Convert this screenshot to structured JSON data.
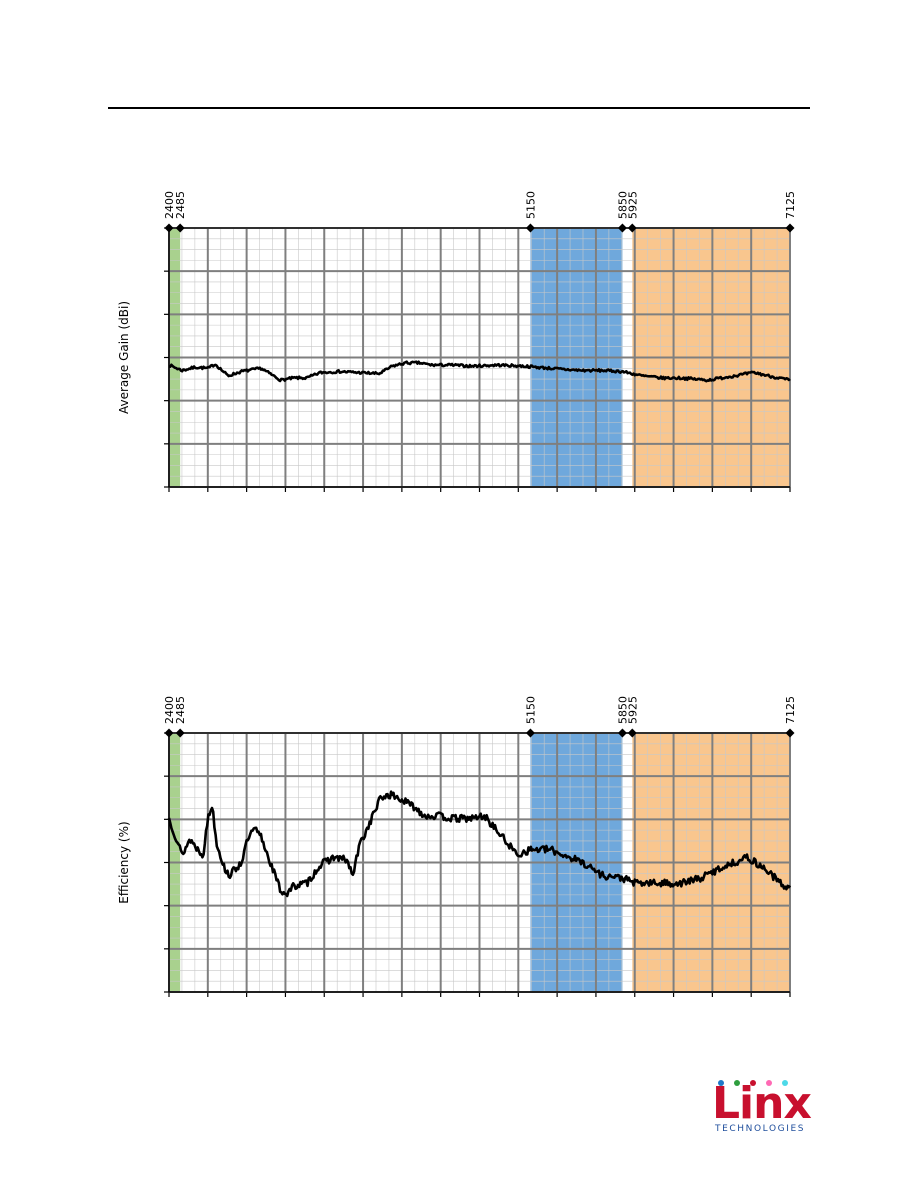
{
  "chart_data": [
    {
      "type": "line",
      "ylabel": "Average Gain (dBi)",
      "x_range": [
        2400,
        7125
      ],
      "frequency_markers": [
        "2400",
        "2485",
        "5150",
        "5850",
        "5925",
        "7125"
      ],
      "bands": [
        {
          "from": 2400,
          "to": 2485,
          "color": "#a9d18e"
        },
        {
          "from": 5150,
          "to": 5850,
          "color": "#6fa8dc"
        },
        {
          "from": 5925,
          "to": 7125,
          "color": "#f9c68e"
        }
      ],
      "grid": true,
      "series": [
        {
          "x": [
            2400,
            2500,
            2600,
            2700,
            2750,
            2850,
            2950,
            3100,
            3250,
            3350,
            3450,
            3550,
            3700,
            3850,
            4000,
            4100,
            4200,
            4300,
            4400,
            4550,
            4700,
            4900,
            5100,
            5200,
            5400,
            5550,
            5700,
            5850,
            6000,
            6150,
            6300,
            6500,
            6700,
            6850,
            7000,
            7125
          ],
          "y": [
            3.65,
            3.4,
            3.55,
            3.5,
            3.7,
            3.15,
            3.35,
            3.5,
            2.95,
            3.05,
            3.05,
            3.3,
            3.35,
            3.3,
            3.25,
            3.6,
            3.75,
            3.75,
            3.65,
            3.65,
            3.6,
            3.65,
            3.6,
            3.55,
            3.45,
            3.4,
            3.4,
            3.35,
            3.15,
            3.05,
            3.05,
            2.95,
            3.15,
            3.3,
            3.1,
            2.95
          ]
        }
      ]
    },
    {
      "type": "line",
      "ylabel": "Efficiency (%)",
      "x_range": [
        2400,
        7125
      ],
      "frequency_markers": [
        "2400",
        "2485",
        "5150",
        "5850",
        "5925",
        "7125"
      ],
      "bands": [
        {
          "from": 2400,
          "to": 2485,
          "color": "#a9d18e"
        },
        {
          "from": 5150,
          "to": 5850,
          "color": "#6fa8dc"
        },
        {
          "from": 5925,
          "to": 7125,
          "color": "#f9c68e"
        }
      ],
      "grid": true,
      "series": [
        {
          "x": [
            2400,
            2500,
            2560,
            2620,
            2660,
            2700,
            2730,
            2760,
            2820,
            2860,
            2950,
            3000,
            3050,
            3100,
            3250,
            3300,
            3350,
            3450,
            3550,
            3650,
            3750,
            3800,
            3850,
            3900,
            4000,
            4050,
            4100,
            4250,
            4350,
            4450,
            4550,
            4700,
            4800,
            4950,
            5050,
            5150,
            5300,
            5400,
            5550,
            5700,
            5850,
            5950,
            6100,
            6300,
            6450,
            6600,
            6800,
            6950,
            7050,
            7125
          ],
          "y": [
            67,
            53,
            59,
            55,
            53,
            68,
            72,
            58,
            48,
            45,
            50,
            59,
            63,
            60,
            39,
            38,
            41,
            42,
            49,
            52,
            51,
            45,
            57,
            62,
            74,
            76,
            76,
            72,
            68,
            68,
            67,
            67,
            68,
            59,
            53,
            55,
            55,
            53,
            50,
            45,
            44,
            42,
            42,
            42,
            44,
            48,
            52,
            47,
            42,
            40
          ]
        }
      ]
    }
  ],
  "logo": {
    "word": "Linx",
    "sub": "TECHNOLOGIES",
    "dot_colors": [
      "#1f78c8",
      "#2e9e3e",
      "#c8102e",
      "#ff69b4",
      "#4dd9e8"
    ]
  }
}
